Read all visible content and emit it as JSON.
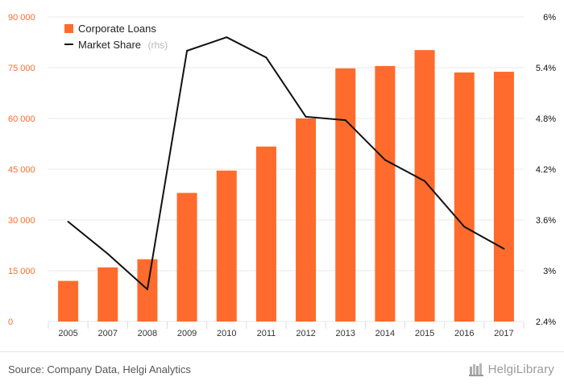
{
  "chart_data": {
    "type": "bar",
    "categories": [
      "2005",
      "2007",
      "2008",
      "2009",
      "2010",
      "2011",
      "2012",
      "2013",
      "2014",
      "2015",
      "2016",
      "2017"
    ],
    "series": [
      {
        "name": "Corporate Loans",
        "type": "bar",
        "axis": "left",
        "color": "#ff6b2c",
        "values": [
          12000,
          16000,
          18400,
          38000,
          44600,
          51700,
          60000,
          74800,
          75500,
          80200,
          73600,
          73800
        ]
      },
      {
        "name": "Market Share",
        "type": "line",
        "axis": "right",
        "color": "#111111",
        "values": [
          3.58,
          3.2,
          2.78,
          5.6,
          5.76,
          5.52,
          4.82,
          4.78,
          4.31,
          4.06,
          3.52,
          3.26
        ]
      }
    ],
    "y_left": {
      "ticks": [
        "0",
        "15 000",
        "30 000",
        "45 000",
        "60 000",
        "75 000",
        "90 000"
      ],
      "range": [
        0,
        90000
      ]
    },
    "y_right": {
      "ticks": [
        "2.4%",
        "3%",
        "3.6%",
        "4.2%",
        "4.8%",
        "5.4%",
        "6%"
      ],
      "range": [
        2.4,
        6.0
      ]
    },
    "legend": {
      "position": "top-left",
      "items": [
        {
          "label": "Corporate Loans",
          "sub": ""
        },
        {
          "label": "Market Share",
          "sub": "(rhs)"
        }
      ]
    },
    "grid": true
  },
  "footer": {
    "source": "Source: Company Data, Helgi Analytics",
    "brand": "HelgiLibrary"
  }
}
